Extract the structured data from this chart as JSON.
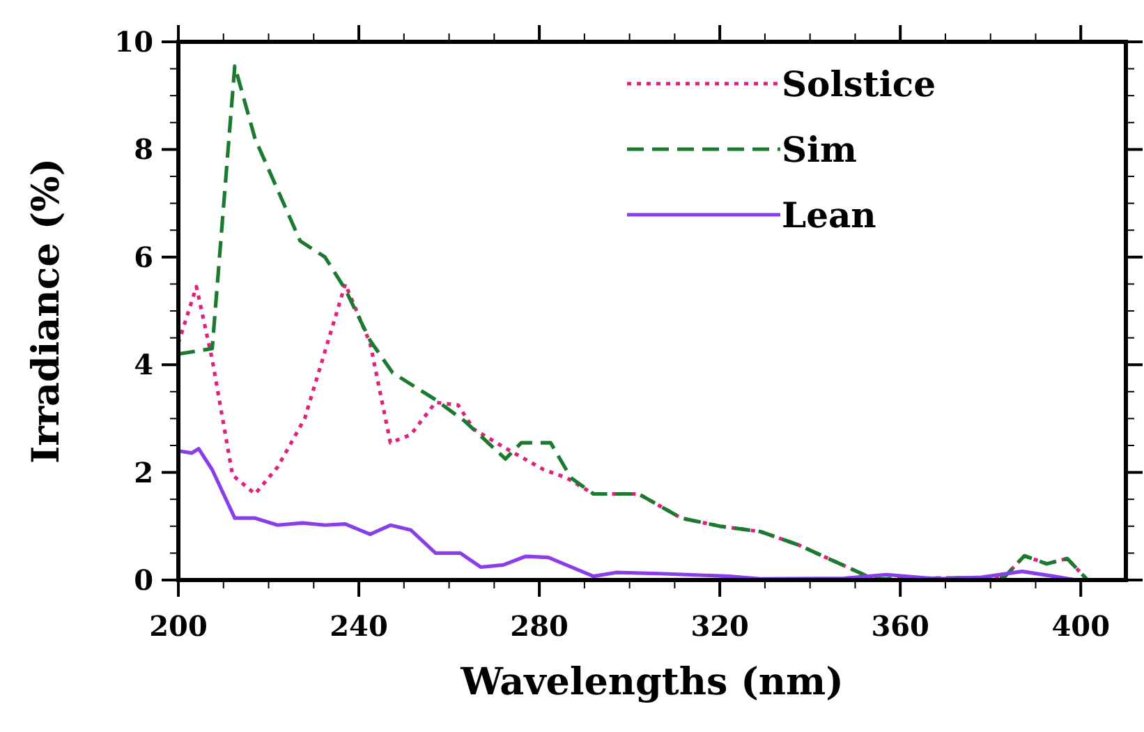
{
  "chart_data": {
    "type": "line",
    "xlabel": "Wavelengths (nm)",
    "ylabel": "Irradiance (%)",
    "xlim": [
      200,
      410
    ],
    "ylim": [
      0,
      10
    ],
    "xticks": [
      200,
      {
        "value": 210,
        "label": null
      },
      {
        "value": 220,
        "label": null
      },
      {
        "value": 230,
        "label": null
      },
      240,
      {
        "value": 250,
        "label": null
      },
      {
        "value": 260,
        "label": null
      },
      {
        "value": 270,
        "label": null
      },
      280,
      {
        "value": 290,
        "label": null
      },
      {
        "value": 300,
        "label": null
      },
      {
        "value": 310,
        "label": null
      },
      320,
      {
        "value": 330,
        "label": null
      },
      {
        "value": 340,
        "label": null
      },
      {
        "value": 350,
        "label": null
      },
      360,
      {
        "value": 370,
        "label": null
      },
      {
        "value": 380,
        "label": null
      },
      {
        "value": 390,
        "label": null
      },
      400
    ],
    "yticks": [
      0,
      {
        "value": 0.5,
        "label": null
      },
      {
        "value": 1,
        "label": null
      },
      {
        "value": 1.5,
        "label": null
      },
      2,
      {
        "value": 2.5,
        "label": null
      },
      {
        "value": 3,
        "label": null
      },
      {
        "value": 3.5,
        "label": null
      },
      4,
      {
        "value": 4.5,
        "label": null
      },
      {
        "value": 5,
        "label": null
      },
      {
        "value": 5.5,
        "label": null
      },
      6,
      {
        "value": 6.5,
        "label": null
      },
      {
        "value": 7,
        "label": null
      },
      {
        "value": 7.5,
        "label": null
      },
      8,
      {
        "value": 8.5,
        "label": null
      },
      {
        "value": 9,
        "label": null
      },
      {
        "value": 9.5,
        "label": null
      },
      10
    ],
    "grid": false,
    "legend": "top right",
    "marker": "none",
    "series": [
      {
        "name": "Solstice",
        "color": "#e0207a",
        "line_style": "dotted",
        "x": [
          200,
          204,
          207.5,
          212,
          217,
          222,
          228,
          237,
          242.5,
          247,
          251.5,
          257,
          262,
          265.5,
          272.5,
          281,
          286,
          292,
          302,
          311.5,
          320,
          329,
          337.5,
          354,
          383,
          387.5,
          392.5,
          397,
          401.5
        ],
        "values": [
          4.4,
          5.45,
          4.1,
          1.95,
          1.6,
          2.1,
          3.0,
          5.5,
          4.4,
          2.55,
          2.7,
          3.3,
          3.25,
          2.8,
          2.45,
          2.05,
          1.9,
          1.6,
          1.6,
          1.15,
          1.0,
          0.9,
          0.65,
          0.02,
          0.05,
          0.45,
          0.3,
          0.4,
          0
        ]
      },
      {
        "name": "Sim",
        "color": "#1a7a30",
        "line_style": "dashed",
        "x": [
          200,
          207.5,
          212.5,
          217,
          227,
          232.5,
          237,
          242.5,
          247.5,
          257,
          263.5,
          272.5,
          276,
          282.5,
          287,
          292,
          302,
          311.5,
          320,
          329,
          337.5,
          354,
          383,
          387.5,
          392.5,
          397,
          401.5
        ],
        "values": [
          4.2,
          4.3,
          9.55,
          8.2,
          6.3,
          6.0,
          5.4,
          4.45,
          3.85,
          3.35,
          2.95,
          2.25,
          2.55,
          2.55,
          1.9,
          1.6,
          1.6,
          1.15,
          1.0,
          0.9,
          0.65,
          0.02,
          0.05,
          0.45,
          0.3,
          0.4,
          0
        ]
      },
      {
        "name": "Lean",
        "color": "#8a3ee8",
        "line_style": "solid",
        "x": [
          200,
          203,
          204.5,
          207.5,
          212.5,
          217,
          222,
          227.5,
          232.5,
          237,
          242.5,
          247,
          251.5,
          257,
          262.5,
          267,
          272,
          277,
          282,
          292,
          297,
          306.5,
          322,
          329,
          347.5,
          357,
          368,
          378,
          387,
          394,
          399
        ],
        "values": [
          2.4,
          2.36,
          2.44,
          2.05,
          1.15,
          1.15,
          1.02,
          1.06,
          1.02,
          1.04,
          0.85,
          1.02,
          0.93,
          0.5,
          0.5,
          0.24,
          0.28,
          0.44,
          0.42,
          0.07,
          0.14,
          0.12,
          0.07,
          0.02,
          0.03,
          0.1,
          0.02,
          0.05,
          0.16,
          0.07,
          0
        ]
      }
    ]
  }
}
